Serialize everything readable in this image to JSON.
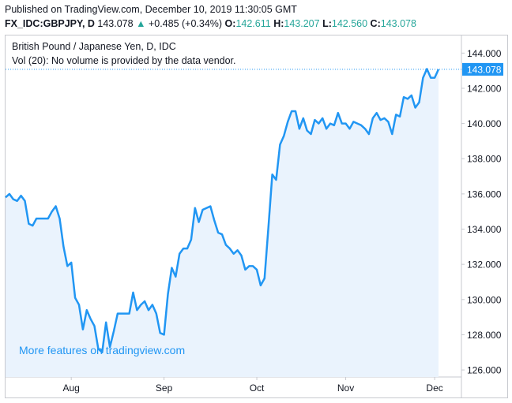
{
  "header": {
    "published": "Published on TradingView.com, December 10, 2019 11:30:05 GMT",
    "symbol_line": "FX_IDC:GBPJPY, D",
    "last": "143.078",
    "arrow": "▲",
    "change": "+0.485 (+0.34%)",
    "o_label": "O:",
    "o_value": "142.611",
    "h_label": "H:",
    "h_value": "143.207",
    "l_label": "L:",
    "l_value": "142.560",
    "c_label": "C:",
    "c_value": "143.078"
  },
  "legend": {
    "title": "British Pound / Japanese Yen, D, IDC",
    "volume_note": "Vol (20): No volume is provided by the data vendor."
  },
  "promo": "More features on tradingview.com",
  "colors": {
    "line": "#2196f3",
    "fill": "#eaf3fd",
    "axis_text": "#131722",
    "price_tag": "#2196f3"
  },
  "chart_data": {
    "type": "area",
    "title": "British Pound / Japanese Yen, D, IDC",
    "x_tick_labels": [
      "Aug",
      "Sep",
      "Oct",
      "Nov",
      "Dec"
    ],
    "y_tick_labels": [
      "126.000",
      "128.000",
      "130.000",
      "132.000",
      "134.000",
      "136.000",
      "138.000",
      "140.000",
      "142.000",
      "144.000"
    ],
    "ylim": [
      125.6,
      145.0
    ],
    "last_price_label": "143.078",
    "series": [
      {
        "values": [
          135.8,
          136.0,
          135.7,
          135.6,
          135.9,
          135.6,
          134.3,
          134.2,
          134.6,
          134.6,
          134.6,
          134.6,
          135.0,
          135.3,
          134.6,
          133.0,
          131.9,
          132.1,
          130.1,
          129.7,
          128.3,
          129.4,
          128.9,
          128.5,
          127.2,
          127.0,
          128.7,
          127.3,
          128.2,
          129.2,
          129.2,
          129.2,
          129.2,
          130.4,
          129.4,
          129.7,
          129.9,
          129.4,
          129.7,
          129.2,
          128.1,
          128.0,
          130.3,
          131.8,
          131.3,
          132.6,
          132.9,
          132.9,
          133.4,
          135.2,
          134.4,
          135.1,
          135.2,
          135.3,
          134.5,
          133.8,
          133.7,
          133.1,
          132.9,
          132.6,
          132.8,
          132.5,
          131.7,
          131.9,
          131.9,
          131.7,
          130.8,
          131.2,
          134.1,
          137.1,
          136.8,
          138.8,
          139.3,
          140.1,
          140.7,
          140.7,
          139.7,
          140.3,
          139.6,
          139.4,
          140.2,
          140.0,
          140.3,
          139.7,
          140.0,
          139.9,
          140.6,
          140.0,
          140.0,
          139.7,
          140.1,
          140.0,
          139.9,
          139.7,
          139.4,
          140.3,
          140.6,
          140.2,
          140.3,
          140.1,
          139.4,
          140.5,
          140.4,
          141.5,
          141.4,
          141.6,
          140.9,
          141.2,
          142.6,
          143.1,
          142.6,
          142.6,
          143.078
        ]
      }
    ]
  }
}
